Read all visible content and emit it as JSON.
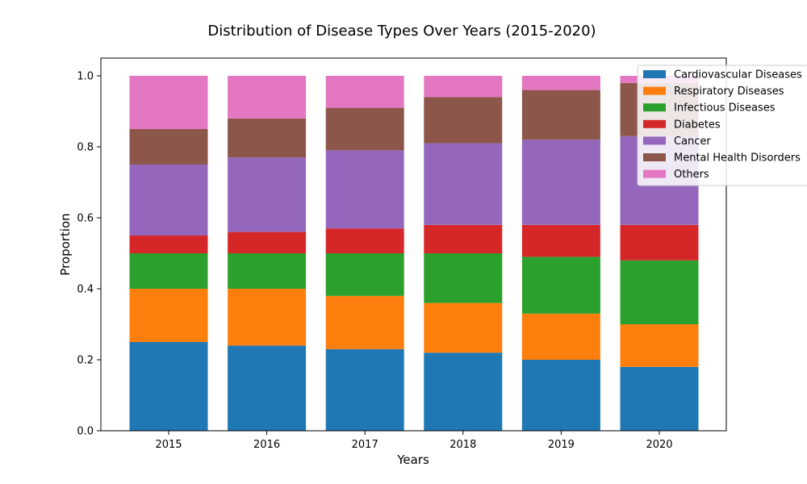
{
  "chart_data": {
    "type": "bar",
    "stacked": true,
    "title": "Distribution of Disease Types Over Years (2015-2020)",
    "xlabel": "Years",
    "ylabel": "Proportion",
    "ylim": [
      0,
      1.05
    ],
    "yticks": [
      "0.0",
      "0.2",
      "0.4",
      "0.6",
      "0.8",
      "1.0"
    ],
    "categories": [
      "2015",
      "2016",
      "2017",
      "2018",
      "2019",
      "2020"
    ],
    "grid": false,
    "legend_position": "top-right",
    "series": [
      {
        "name": "Cardiovascular Diseases",
        "color": "#1f77b4",
        "values": [
          0.25,
          0.24,
          0.23,
          0.22,
          0.2,
          0.18
        ]
      },
      {
        "name": "Respiratory Diseases",
        "color": "#ff7f0e",
        "values": [
          0.15,
          0.16,
          0.15,
          0.14,
          0.13,
          0.12
        ]
      },
      {
        "name": "Infectious Diseases",
        "color": "#2ca02c",
        "values": [
          0.1,
          0.1,
          0.12,
          0.14,
          0.16,
          0.18
        ]
      },
      {
        "name": "Diabetes",
        "color": "#d62728",
        "values": [
          0.05,
          0.06,
          0.07,
          0.08,
          0.09,
          0.1
        ]
      },
      {
        "name": "Cancer",
        "color": "#9467bd",
        "values": [
          0.2,
          0.21,
          0.22,
          0.23,
          0.24,
          0.25
        ]
      },
      {
        "name": "Mental Health Disorders",
        "color": "#8c564b",
        "values": [
          0.1,
          0.11,
          0.12,
          0.13,
          0.14,
          0.15
        ]
      },
      {
        "name": "Others",
        "color": "#e377c2",
        "values": [
          0.15,
          0.12,
          0.09,
          0.06,
          0.04,
          0.02
        ]
      }
    ]
  }
}
